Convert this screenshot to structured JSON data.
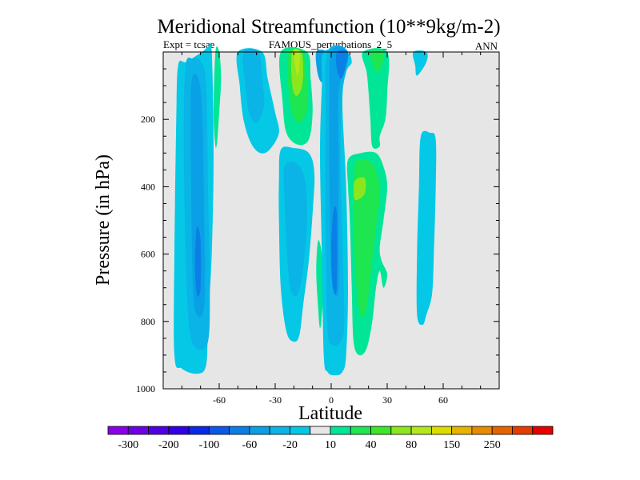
{
  "chart_data": {
    "type": "contour",
    "title": "Meridional Streamfunction (10**9kg/m-2)",
    "subtitle_left": "Expt = tcsae",
    "subtitle_center": "FAMOUS_perturbations_2_5",
    "subtitle_right": "ANN",
    "xlabel": "Latitude",
    "ylabel": "Pressure (in hPa)",
    "xlim": [
      -90,
      90
    ],
    "ylim": [
      1000,
      0
    ],
    "xticks": [
      -60,
      -30,
      0,
      30,
      60
    ],
    "xtick_labels": [
      "-60",
      "-30",
      "0",
      "30",
      "60"
    ],
    "yticks": [
      200,
      400,
      600,
      800,
      1000
    ],
    "ytick_labels": [
      "200",
      "400",
      "600",
      "800",
      "1000"
    ],
    "background_color": "#e6e6e6",
    "colorbar": {
      "colors": [
        "#8a00e6",
        "#6e00e6",
        "#4f00e6",
        "#3000e6",
        "#0a28e6",
        "#0a5ae6",
        "#0a80e6",
        "#0aa0e6",
        "#0ab4e6",
        "#05c8e6",
        "#e6e6e6",
        "#00e696",
        "#1ee650",
        "#3ce628",
        "#8ce61e",
        "#b4e61e",
        "#dcdc00",
        "#e6b400",
        "#e68c00",
        "#e66400",
        "#e63c00",
        "#e60000"
      ],
      "labels": [
        "-300",
        "-200",
        "-100",
        "-60",
        "-20",
        "10",
        "40",
        "80",
        "150",
        "250"
      ]
    },
    "contours": [
      {
        "name": "sh-polar-cell-outer",
        "color": "#05c8e6",
        "points": [
          [
            -82,
            40
          ],
          [
            -78,
            30
          ],
          [
            -72,
            10
          ],
          [
            -68,
            -5
          ],
          [
            -66,
            -15
          ],
          [
            -64,
            0
          ],
          [
            -63,
            300
          ],
          [
            -64,
            600
          ],
          [
            -66,
            800
          ],
          [
            -67,
            930
          ],
          [
            -72,
            955
          ],
          [
            -80,
            940
          ],
          [
            -84,
            900
          ],
          [
            -84,
            600
          ],
          [
            -83,
            200
          ]
        ]
      },
      {
        "name": "sh-polar-cell-mid",
        "color": "#0ab4e6",
        "points": [
          [
            -78,
            40
          ],
          [
            -74,
            20
          ],
          [
            -70,
            25
          ],
          [
            -67,
            100
          ],
          [
            -66,
            400
          ],
          [
            -65,
            700
          ],
          [
            -66,
            860
          ],
          [
            -72,
            880
          ],
          [
            -76,
            820
          ],
          [
            -78,
            600
          ],
          [
            -79,
            250
          ]
        ]
      },
      {
        "name": "sh-polar-cell-inner",
        "color": "#0aa0e6",
        "points": [
          [
            -75,
            100
          ],
          [
            -71,
            80
          ],
          [
            -69,
            200
          ],
          [
            -68,
            500
          ],
          [
            -68,
            750
          ],
          [
            -72,
            780
          ],
          [
            -74,
            700
          ],
          [
            -75,
            400
          ]
        ]
      },
      {
        "name": "sh-polar-cell-core",
        "color": "#0a80e6",
        "points": [
          [
            -72,
            520
          ],
          [
            -70,
            560
          ],
          [
            -70,
            700
          ],
          [
            -72,
            720
          ],
          [
            -73,
            620
          ]
        ]
      },
      {
        "name": "sh-green-strip",
        "color": "#00e696",
        "points": [
          [
            -62,
            0
          ],
          [
            -60,
            0
          ],
          [
            -59,
            80
          ],
          [
            -60,
            180
          ],
          [
            -61,
            260
          ],
          [
            -62,
            280
          ],
          [
            -63,
            180
          ]
        ]
      },
      {
        "name": "sh-ferrel-cell",
        "color": "#05c8e6",
        "points": [
          [
            -50,
            0
          ],
          [
            -37,
            0
          ],
          [
            -34,
            80
          ],
          [
            -30,
            180
          ],
          [
            -28,
            240
          ],
          [
            -33,
            290
          ],
          [
            -38,
            300
          ],
          [
            -43,
            270
          ],
          [
            -47,
            200
          ],
          [
            -49,
            100
          ]
        ]
      },
      {
        "name": "sh-ferrel-inner",
        "color": "#0ab4e6",
        "points": [
          [
            -47,
            0
          ],
          [
            -39,
            0
          ],
          [
            -37,
            80
          ],
          [
            -36,
            160
          ],
          [
            -40,
            210
          ],
          [
            -44,
            180
          ],
          [
            -46,
            100
          ]
        ]
      },
      {
        "name": "hadley-green-band",
        "color": "#00e696",
        "points": [
          [
            -27,
            0
          ],
          [
            -13,
            0
          ],
          [
            -11,
            80
          ],
          [
            -10,
            180
          ],
          [
            -12,
            260
          ],
          [
            -18,
            275
          ],
          [
            -24,
            240
          ],
          [
            -26,
            150
          ]
        ]
      },
      {
        "name": "hadley-green-mid",
        "color": "#1ee650",
        "points": [
          [
            -23,
            0
          ],
          [
            -15,
            0
          ],
          [
            -13,
            80
          ],
          [
            -13,
            170
          ],
          [
            -17,
            210
          ],
          [
            -21,
            180
          ],
          [
            -23,
            100
          ]
        ]
      },
      {
        "name": "hadley-yellow",
        "color": "#8ce61e",
        "points": [
          [
            -21,
            0
          ],
          [
            -16,
            0
          ],
          [
            -15,
            60
          ],
          [
            -16,
            110
          ],
          [
            -19,
            130
          ],
          [
            -21,
            90
          ]
        ]
      },
      {
        "name": "hadley-yellow-core",
        "color": "#b4e61e",
        "points": [
          [
            -20,
            0
          ],
          [
            -17,
            0
          ],
          [
            -17,
            40
          ],
          [
            -18,
            70
          ],
          [
            -19,
            50
          ]
        ]
      },
      {
        "name": "upper-blue-right",
        "color": "#0aa0e6",
        "points": [
          [
            -8,
            0
          ],
          [
            -2,
            0
          ],
          [
            -1,
            40
          ],
          [
            -4,
            90
          ],
          [
            -7,
            70
          ]
        ]
      },
      {
        "name": "deep-sh-cell",
        "color": "#05c8e6",
        "points": [
          [
            -27,
            290
          ],
          [
            -20,
            285
          ],
          [
            -12,
            300
          ],
          [
            -9,
            360
          ],
          [
            -10,
            480
          ],
          [
            -12,
            620
          ],
          [
            -15,
            750
          ],
          [
            -17,
            840
          ],
          [
            -20,
            860
          ],
          [
            -24,
            830
          ],
          [
            -27,
            700
          ],
          [
            -28,
            500
          ],
          [
            -28,
            380
          ]
        ]
      },
      {
        "name": "deep-sh-cell-inner",
        "color": "#0ab4e6",
        "points": [
          [
            -25,
            340
          ],
          [
            -19,
            330
          ],
          [
            -14,
            380
          ],
          [
            -13,
            500
          ],
          [
            -15,
            640
          ],
          [
            -18,
            720
          ],
          [
            -22,
            700
          ],
          [
            -24,
            560
          ],
          [
            -25,
            430
          ]
        ]
      },
      {
        "name": "small-green-tongue",
        "color": "#00e696",
        "points": [
          [
            -7,
            560
          ],
          [
            -5,
            600
          ],
          [
            -4,
            700
          ],
          [
            -5,
            780
          ],
          [
            -6,
            820
          ],
          [
            -7,
            760
          ],
          [
            -8,
            650
          ]
        ]
      },
      {
        "name": "eq-blue-cell-outer",
        "color": "#05c8e6",
        "points": [
          [
            -4,
            0
          ],
          [
            8,
            0
          ],
          [
            11,
            30
          ],
          [
            8,
            60
          ],
          [
            6,
            150
          ],
          [
            8,
            400
          ],
          [
            9,
            700
          ],
          [
            8,
            900
          ],
          [
            6,
            950
          ],
          [
            2,
            960
          ],
          [
            -2,
            950
          ],
          [
            -4,
            900
          ],
          [
            -5,
            600
          ],
          [
            -6,
            300
          ],
          [
            -5,
            100
          ]
        ]
      },
      {
        "name": "eq-blue-cell-mid",
        "color": "#0ab4e6",
        "points": [
          [
            -2,
            0
          ],
          [
            9,
            0
          ],
          [
            6,
            120
          ],
          [
            5,
            300
          ],
          [
            6,
            550
          ],
          [
            7,
            800
          ],
          [
            5,
            860
          ],
          [
            1,
            870
          ],
          [
            -2,
            820
          ],
          [
            -3,
            500
          ],
          [
            -3,
            200
          ]
        ]
      },
      {
        "name": "eq-blue-cell-inner",
        "color": "#0aa0e6",
        "points": [
          [
            0,
            0
          ],
          [
            8,
            0
          ],
          [
            4,
            120
          ],
          [
            4,
            300
          ],
          [
            4,
            540
          ],
          [
            4,
            700
          ],
          [
            2,
            720
          ],
          [
            0,
            650
          ],
          [
            -1,
            350
          ],
          [
            -1,
            150
          ]
        ]
      },
      {
        "name": "eq-blue-core",
        "color": "#0a80e6",
        "points": [
          [
            3,
            0
          ],
          [
            9,
            0
          ],
          [
            7,
            60
          ],
          [
            5,
            80
          ],
          [
            3,
            50
          ]
        ]
      },
      {
        "name": "eq-blue-core-low",
        "color": "#0a80e6",
        "points": [
          [
            1,
            480
          ],
          [
            3,
            480
          ],
          [
            3,
            700
          ],
          [
            1,
            700
          ],
          [
            0,
            600
          ]
        ]
      },
      {
        "name": "nh-upper-green",
        "color": "#00e696",
        "points": [
          [
            17,
            0
          ],
          [
            30,
            0
          ],
          [
            30,
            120
          ],
          [
            29,
            200
          ],
          [
            26,
            250
          ],
          [
            26,
            280
          ],
          [
            22,
            280
          ],
          [
            21,
            200
          ],
          [
            20,
            120
          ],
          [
            19,
            60
          ]
        ]
      },
      {
        "name": "nh-upper-green-mid",
        "color": "#1ee650",
        "points": [
          [
            21,
            0
          ],
          [
            28,
            0
          ],
          [
            27,
            40
          ],
          [
            25,
            60
          ],
          [
            23,
            50
          ]
        ]
      },
      {
        "name": "nh-hadley-outer",
        "color": "#00e696",
        "points": [
          [
            9,
            320
          ],
          [
            16,
            300
          ],
          [
            24,
            300
          ],
          [
            28,
            340
          ],
          [
            30,
            400
          ],
          [
            28,
            500
          ],
          [
            26,
            580
          ],
          [
            27,
            620
          ],
          [
            30,
            660
          ],
          [
            28,
            700
          ],
          [
            26,
            650
          ],
          [
            24,
            700
          ],
          [
            22,
            800
          ],
          [
            19,
            880
          ],
          [
            15,
            900
          ],
          [
            12,
            860
          ],
          [
            11,
            700
          ],
          [
            10,
            500
          ],
          [
            9,
            400
          ]
        ]
      },
      {
        "name": "nh-hadley-inner",
        "color": "#1ee650",
        "points": [
          [
            13,
            330
          ],
          [
            19,
            320
          ],
          [
            24,
            350
          ],
          [
            26,
            420
          ],
          [
            24,
            520
          ],
          [
            22,
            620
          ],
          [
            20,
            720
          ],
          [
            18,
            780
          ],
          [
            15,
            770
          ],
          [
            13,
            650
          ],
          [
            12,
            500
          ],
          [
            12,
            400
          ]
        ]
      },
      {
        "name": "nh-hadley-core",
        "color": "#8ce61e",
        "points": [
          [
            13,
            380
          ],
          [
            18,
            375
          ],
          [
            18,
            420
          ],
          [
            13,
            440
          ],
          [
            12,
            410
          ]
        ]
      },
      {
        "name": "nh-polar-cell",
        "color": "#05c8e6",
        "points": [
          [
            44,
            0
          ],
          [
            51,
            0
          ],
          [
            51,
            30
          ],
          [
            46,
            70
          ],
          [
            45,
            40
          ]
        ]
      },
      {
        "name": "nh-polar-lower",
        "color": "#05c8e6",
        "points": [
          [
            48,
            250
          ],
          [
            53,
            240
          ],
          [
            56,
            260
          ],
          [
            56,
            400
          ],
          [
            55,
            600
          ],
          [
            54,
            720
          ],
          [
            51,
            780
          ],
          [
            49,
            810
          ],
          [
            46,
            780
          ],
          [
            46,
            600
          ],
          [
            47,
            400
          ]
        ]
      }
    ]
  }
}
